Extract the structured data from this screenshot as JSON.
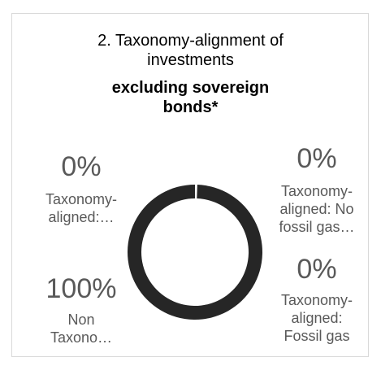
{
  "chart_data": {
    "type": "pie",
    "title_lines": [
      "2. Taxonomy-alignment of",
      "investments"
    ],
    "subtitle_lines": [
      "excluding sovereign",
      "bonds*"
    ],
    "slices": [
      {
        "label_lines": [
          "Taxonomy-",
          "aligned:…"
        ],
        "value": 0,
        "display": "0%",
        "color": "#b3b3b3"
      },
      {
        "label_lines": [
          "Taxonomy-",
          "aligned: No",
          "fossil gas…"
        ],
        "value": 0,
        "display": "0%",
        "color": "#7f7f7f"
      },
      {
        "label_lines": [
          "Taxonomy-",
          "aligned:",
          "Fossil gas"
        ],
        "value": 0,
        "display": "0%",
        "color": "#595959"
      },
      {
        "label_lines": [
          "Non",
          "Taxono…"
        ],
        "value": 100,
        "display": "100%",
        "color": "#262626"
      }
    ],
    "hole": "donut"
  }
}
